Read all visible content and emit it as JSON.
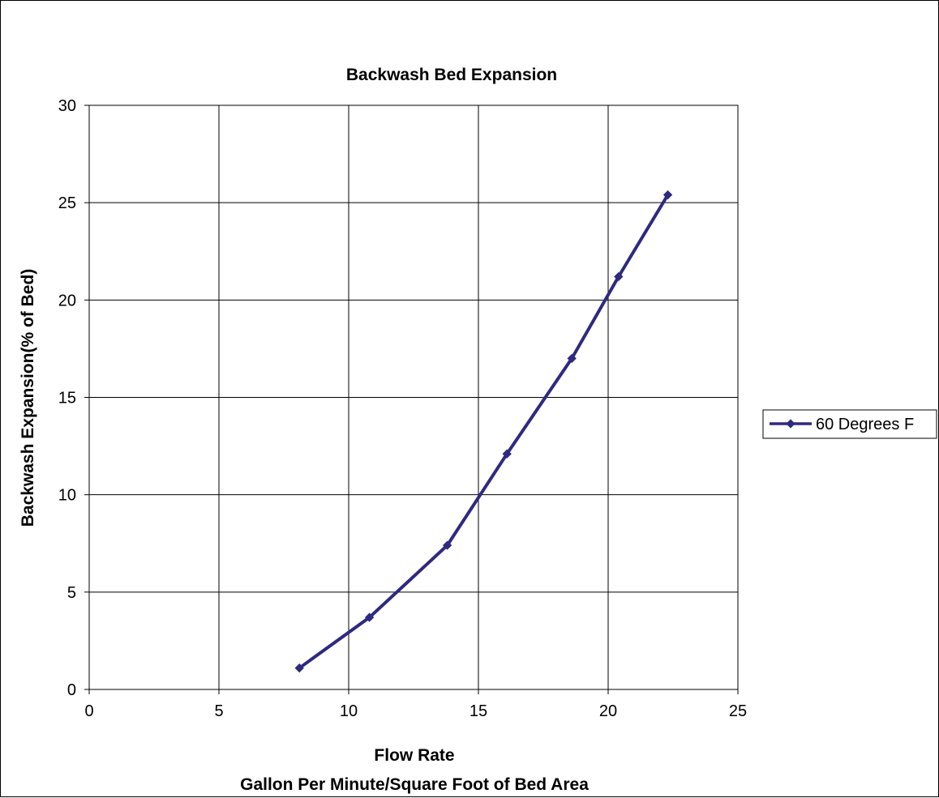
{
  "chart_data": {
    "type": "line",
    "title": "Backwash Bed Expansion",
    "xlabel": "Flow Rate",
    "xlabel_sub": "Gallon Per Minute/Square Foot of Bed Area",
    "ylabel": "Backwash Expansion(% of Bed)",
    "xlim": [
      0,
      25
    ],
    "ylim": [
      0,
      30
    ],
    "x_ticks": [
      "0",
      "5",
      "10",
      "15",
      "20",
      "25"
    ],
    "y_ticks": [
      "0",
      "5",
      "10",
      "15",
      "20",
      "25",
      "30"
    ],
    "grid": true,
    "legend_position": "right",
    "series": [
      {
        "name": "60 Degrees F",
        "color": "#2e2a7f",
        "points": [
          {
            "x": 8.1,
            "y": 1.1
          },
          {
            "x": 10.8,
            "y": 3.7
          },
          {
            "x": 13.8,
            "y": 7.4
          },
          {
            "x": 16.1,
            "y": 12.1
          },
          {
            "x": 18.6,
            "y": 17.0
          },
          {
            "x": 20.4,
            "y": 21.2
          },
          {
            "x": 22.3,
            "y": 25.4
          }
        ]
      }
    ]
  }
}
